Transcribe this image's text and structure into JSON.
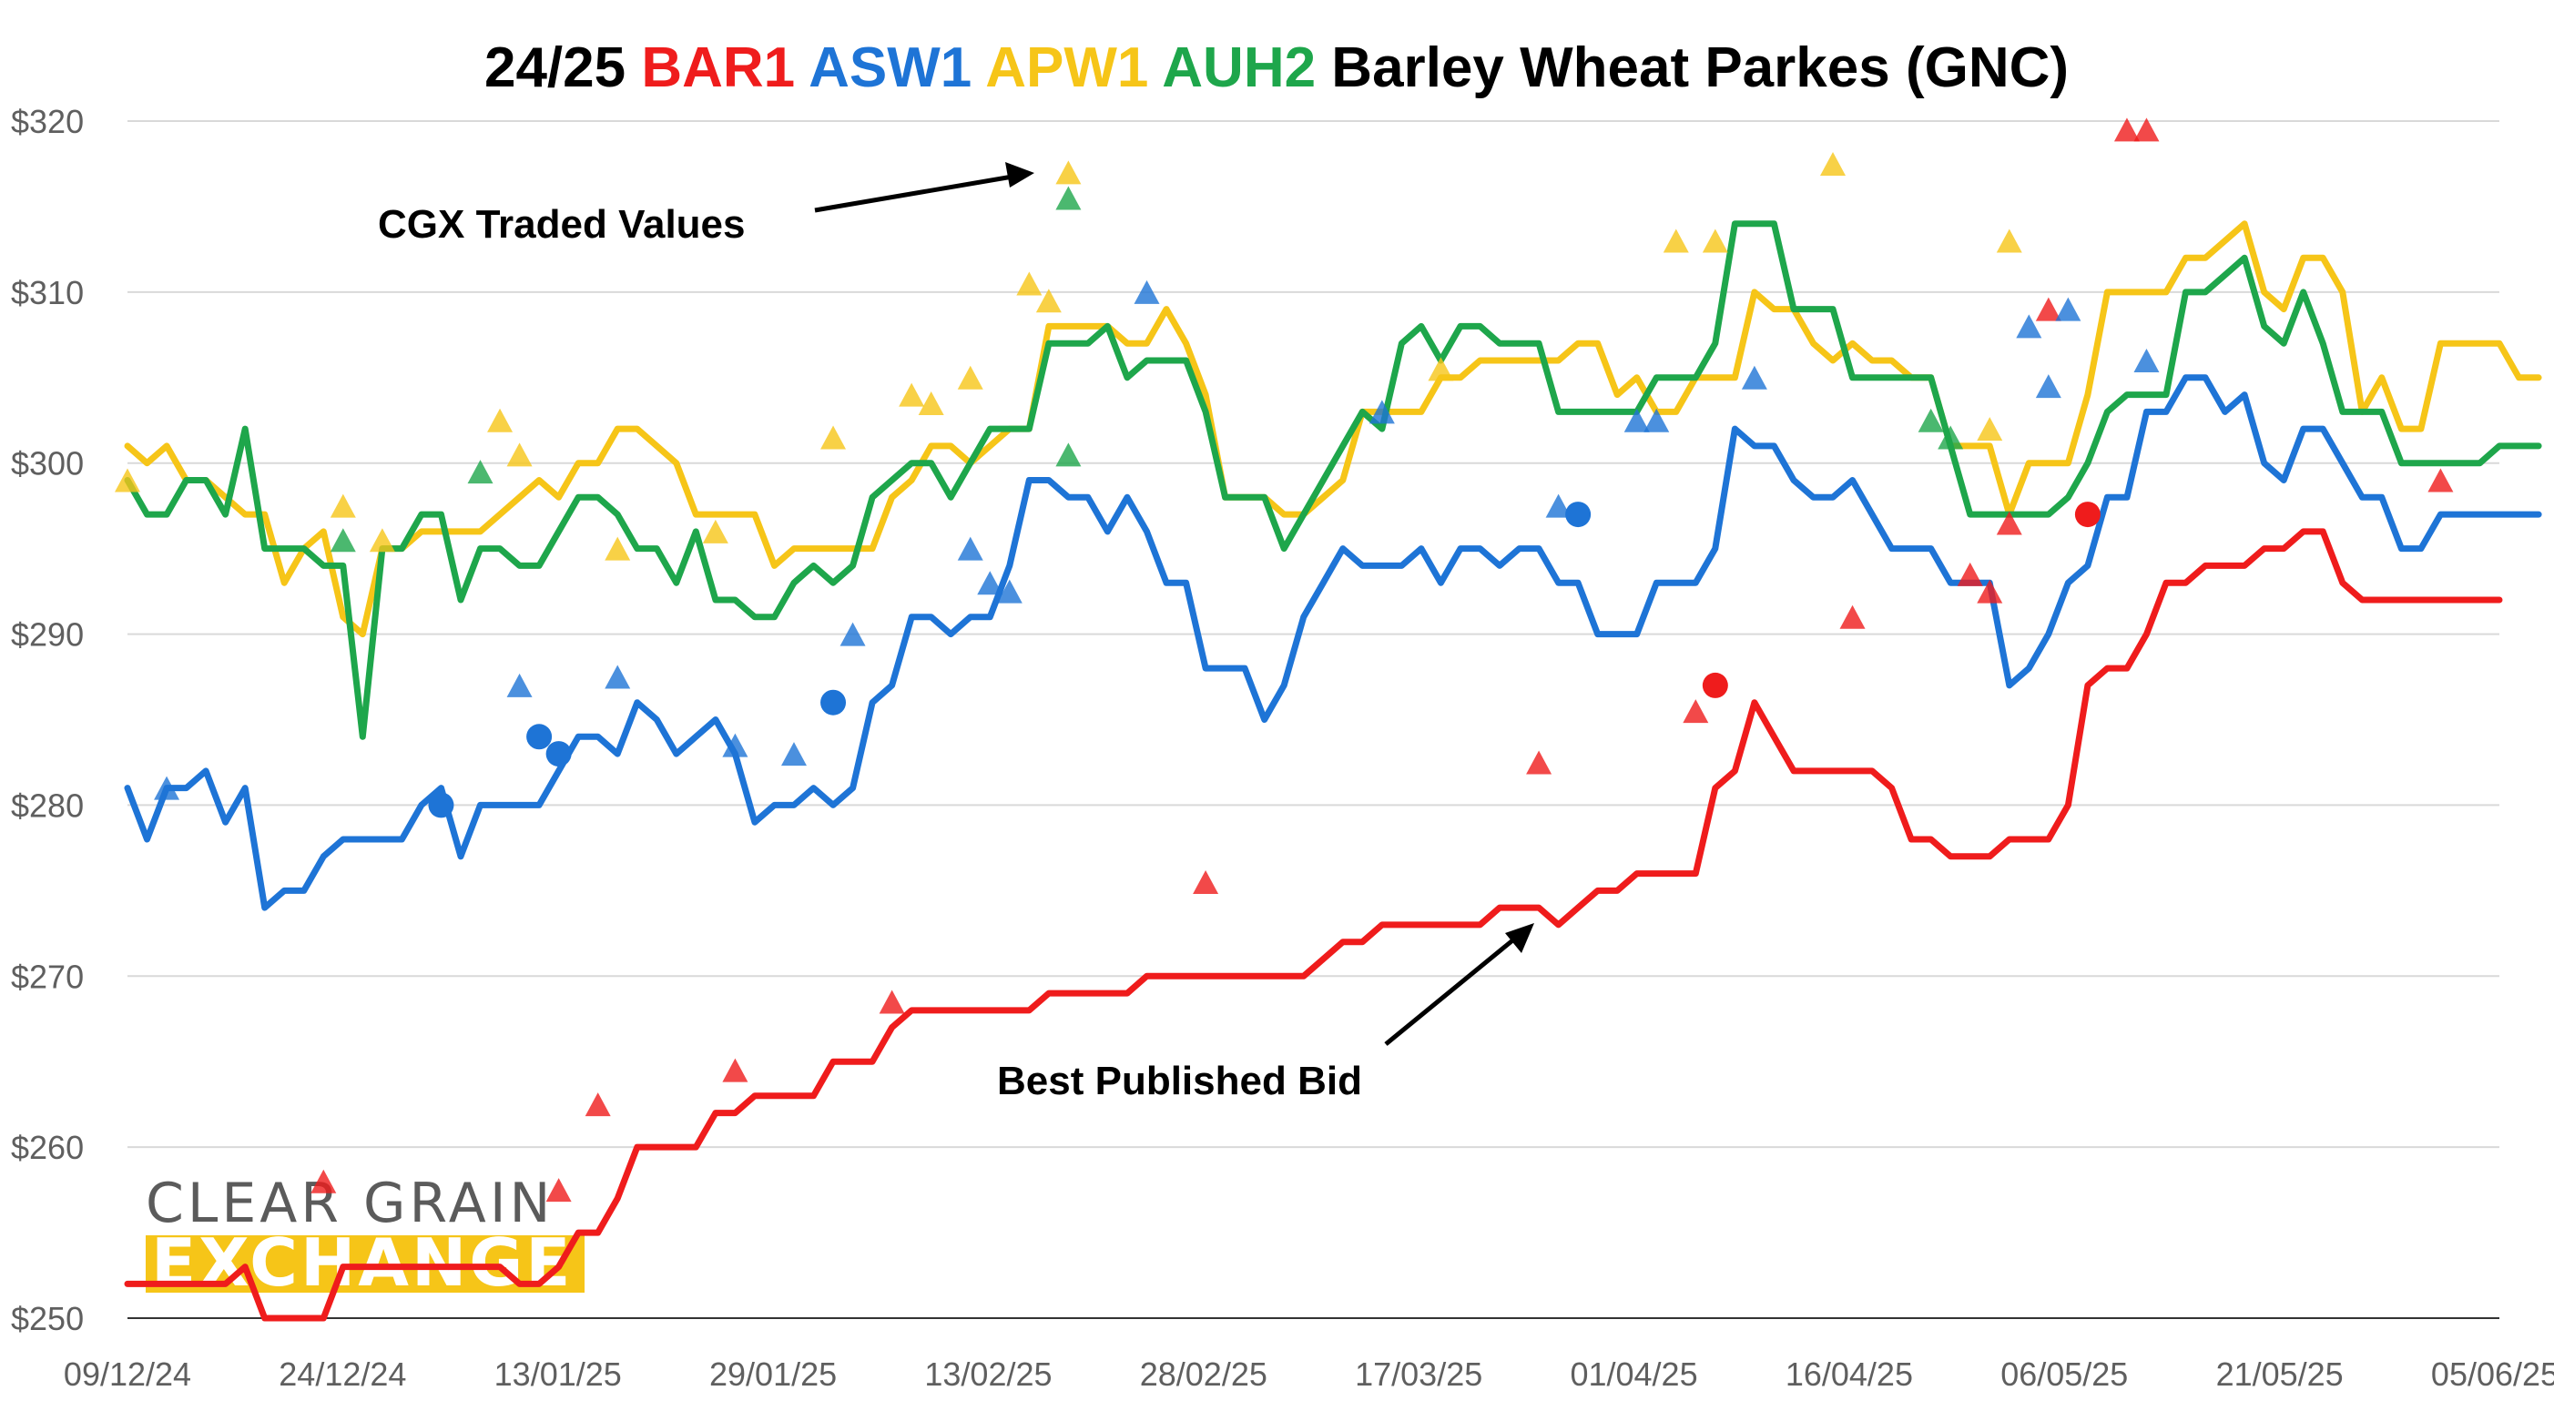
{
  "chart_data": {
    "type": "line",
    "title_parts": [
      {
        "text": "24/25 ",
        "color": "#000000"
      },
      {
        "text": "BAR1",
        "color": "#ef1c1c"
      },
      {
        "text": " ",
        "color": "#000000"
      },
      {
        "text": "ASW1",
        "color": "#1e74d6"
      },
      {
        "text": " ",
        "color": "#000000"
      },
      {
        "text": "APW1",
        "color": "#f6c518"
      },
      {
        "text": " ",
        "color": "#000000"
      },
      {
        "text": "AUH2",
        "color": "#1ea64b"
      },
      {
        "text": " Barley Wheat Parkes (GNC)",
        "color": "#000000"
      }
    ],
    "ylim": [
      250,
      320
    ],
    "y_ticks": [
      250,
      260,
      270,
      280,
      290,
      300,
      310,
      320
    ],
    "y_tick_labels": [
      "$250",
      "$260",
      "$270",
      "$280",
      "$290",
      "$300",
      "$310",
      "$320"
    ],
    "x_tick_labels": [
      "09/12/24",
      "24/12/24",
      "13/01/25",
      "29/01/25",
      "13/02/25",
      "28/02/25",
      "17/03/25",
      "01/04/25",
      "16/04/25",
      "06/05/25",
      "21/05/25",
      "05/06/25"
    ],
    "grid": true,
    "series": [
      {
        "name": "BAR1",
        "color": "#ef1c1c",
        "values": [
          252,
          252,
          252,
          252,
          252,
          252,
          253,
          250,
          250,
          250,
          250,
          253,
          253,
          253,
          253,
          253,
          253,
          253,
          253,
          253,
          252,
          252,
          253,
          255,
          255,
          257,
          260,
          260,
          260,
          260,
          262,
          262,
          263,
          263,
          263,
          263,
          265,
          265,
          265,
          267,
          268,
          268,
          268,
          268,
          268,
          268,
          268,
          269,
          269,
          269,
          269,
          269,
          270,
          270,
          270,
          270,
          270,
          270,
          270,
          270,
          270,
          271,
          272,
          272,
          273,
          273,
          273,
          273,
          273,
          273,
          274,
          274,
          274,
          273,
          274,
          275,
          275,
          276,
          276,
          276,
          276,
          281,
          282,
          286,
          284,
          282,
          282,
          282,
          282,
          282,
          281,
          278,
          278,
          277,
          277,
          277,
          278,
          278,
          278,
          280,
          287,
          288,
          288,
          290,
          293,
          293,
          294,
          294,
          294,
          295,
          295,
          296,
          296,
          293,
          292,
          292,
          292,
          292,
          292,
          292,
          292,
          292
        ]
      },
      {
        "name": "ASW1",
        "color": "#1e74d6",
        "values": [
          281,
          278,
          281,
          281,
          282,
          279,
          281,
          274,
          275,
          275,
          277,
          278,
          278,
          278,
          278,
          280,
          281,
          277,
          280,
          280,
          280,
          280,
          282,
          284,
          284,
          283,
          286,
          285,
          283,
          284,
          285,
          283,
          279,
          280,
          280,
          281,
          280,
          281,
          286,
          287,
          291,
          291,
          290,
          291,
          291,
          294,
          299,
          299,
          298,
          298,
          296,
          298,
          296,
          293,
          293,
          288,
          288,
          288,
          285,
          287,
          291,
          293,
          295,
          294,
          294,
          294,
          295,
          293,
          295,
          295,
          294,
          295,
          295,
          293,
          293,
          290,
          290,
          290,
          293,
          293,
          293,
          295,
          302,
          301,
          301,
          299,
          298,
          298,
          299,
          297,
          295,
          295,
          295,
          293,
          293,
          293,
          287,
          288,
          290,
          293,
          294,
          298,
          298,
          303,
          303,
          305,
          305,
          303,
          304,
          300,
          299,
          302,
          302,
          300,
          298,
          298,
          295,
          295,
          297,
          297,
          297,
          297,
          297,
          297
        ]
      },
      {
        "name": "APW1",
        "color": "#f6c518",
        "values": [
          301,
          300,
          301,
          299,
          299,
          298,
          297,
          297,
          293,
          295,
          296,
          291,
          290,
          295,
          295,
          296,
          296,
          296,
          296,
          297,
          298,
          299,
          298,
          300,
          300,
          302,
          302,
          301,
          300,
          297,
          297,
          297,
          297,
          294,
          295,
          295,
          295,
          295,
          295,
          298,
          299,
          301,
          301,
          300,
          301,
          302,
          302,
          308,
          308,
          308,
          308,
          307,
          307,
          309,
          307,
          304,
          298,
          298,
          298,
          297,
          297,
          298,
          299,
          303,
          303,
          303,
          303,
          305,
          305,
          306,
          306,
          306,
          306,
          306,
          307,
          307,
          304,
          305,
          303,
          303,
          305,
          305,
          305,
          310,
          309,
          309,
          307,
          306,
          307,
          306,
          306,
          305,
          305,
          301,
          301,
          301,
          297,
          300,
          300,
          300,
          304,
          310,
          310,
          310,
          310,
          312,
          312,
          313,
          314,
          310,
          309,
          312,
          312,
          310,
          303,
          305,
          302,
          302,
          307,
          307,
          307,
          307,
          305,
          305
        ]
      },
      {
        "name": "AUH2",
        "color": "#1ea64b",
        "values": [
          299,
          297,
          297,
          299,
          299,
          297,
          302,
          295,
          295,
          295,
          294,
          294,
          284,
          295,
          295,
          297,
          297,
          292,
          295,
          295,
          294,
          294,
          296,
          298,
          298,
          297,
          295,
          295,
          293,
          296,
          292,
          292,
          291,
          291,
          293,
          294,
          293,
          294,
          298,
          299,
          300,
          300,
          298,
          300,
          302,
          302,
          302,
          307,
          307,
          307,
          308,
          305,
          306,
          306,
          306,
          303,
          298,
          298,
          298,
          295,
          297,
          299,
          301,
          303,
          302,
          307,
          308,
          306,
          308,
          308,
          307,
          307,
          307,
          303,
          303,
          303,
          303,
          303,
          305,
          305,
          305,
          307,
          314,
          314,
          314,
          309,
          309,
          309,
          305,
          305,
          305,
          305,
          305,
          301,
          297,
          297,
          297,
          297,
          297,
          298,
          300,
          303,
          304,
          304,
          304,
          310,
          310,
          311,
          312,
          308,
          307,
          310,
          307,
          303,
          303,
          303,
          300,
          300,
          300,
          300,
          300,
          301,
          301,
          301
        ]
      }
    ],
    "traded_values": [
      {
        "series": "BAR1",
        "marker": "triangle",
        "points": [
          [
            10,
            258
          ],
          [
            22,
            257.5
          ],
          [
            24,
            262.5
          ],
          [
            31,
            264.5
          ],
          [
            39,
            268.5
          ],
          [
            55,
            275.5
          ],
          [
            72,
            282.5
          ],
          [
            80,
            285.5
          ],
          [
            88,
            291
          ],
          [
            94,
            293.5
          ],
          [
            95,
            292.5
          ],
          [
            96,
            296.5
          ],
          [
            98,
            309
          ],
          [
            102,
            319.5
          ],
          [
            103,
            319.5
          ],
          [
            118,
            299
          ]
        ]
      },
      {
        "series": "BAR1",
        "marker": "circle",
        "points": [
          [
            81,
            287
          ],
          [
            100,
            297
          ]
        ]
      },
      {
        "series": "ASW1",
        "marker": "triangle",
        "points": [
          [
            2,
            281
          ],
          [
            20,
            287
          ],
          [
            25,
            287.5
          ],
          [
            31,
            283.5
          ],
          [
            34,
            283
          ],
          [
            37,
            290
          ],
          [
            43,
            295
          ],
          [
            44,
            293
          ],
          [
            45,
            292.5
          ],
          [
            52,
            310
          ],
          [
            64,
            303
          ],
          [
            73,
            297.5
          ],
          [
            77,
            302.5
          ],
          [
            78,
            302.5
          ],
          [
            83,
            305
          ],
          [
            97,
            308
          ],
          [
            98,
            304.5
          ],
          [
            99,
            309
          ],
          [
            103,
            306
          ]
        ]
      },
      {
        "series": "ASW1",
        "marker": "circle",
        "points": [
          [
            16,
            280
          ],
          [
            21,
            284
          ],
          [
            22,
            283
          ],
          [
            36,
            286
          ],
          [
            74,
            297
          ]
        ]
      },
      {
        "series": "APW1",
        "marker": "triangle",
        "points": [
          [
            0,
            299
          ],
          [
            11,
            297.5
          ],
          [
            13,
            295.5
          ],
          [
            19,
            302.5
          ],
          [
            20,
            300.5
          ],
          [
            25,
            295
          ],
          [
            30,
            296
          ],
          [
            36,
            301.5
          ],
          [
            40,
            304
          ],
          [
            41,
            303.5
          ],
          [
            43,
            305
          ],
          [
            46,
            310.5
          ],
          [
            47,
            309.5
          ],
          [
            48,
            317
          ],
          [
            67,
            305.5
          ],
          [
            79,
            313
          ],
          [
            81,
            313
          ],
          [
            87,
            317.5
          ],
          [
            95,
            302
          ],
          [
            96,
            313
          ]
        ]
      },
      {
        "series": "AUH2",
        "marker": "triangle",
        "points": [
          [
            11,
            295.5
          ],
          [
            18,
            299.5
          ],
          [
            48,
            315.5
          ],
          [
            48,
            300.5
          ],
          [
            92,
            302.5
          ],
          [
            93,
            301.5
          ]
        ]
      }
    ],
    "annotations": {
      "traded_label": "CGX Traded Values",
      "bid_label": "Best Published Bid"
    },
    "logo": {
      "line1": "CLEAR GRAIN",
      "line2": "EXCHANGE",
      "line1_color": "#5b5b5b",
      "band_color": "#f6c518"
    }
  }
}
